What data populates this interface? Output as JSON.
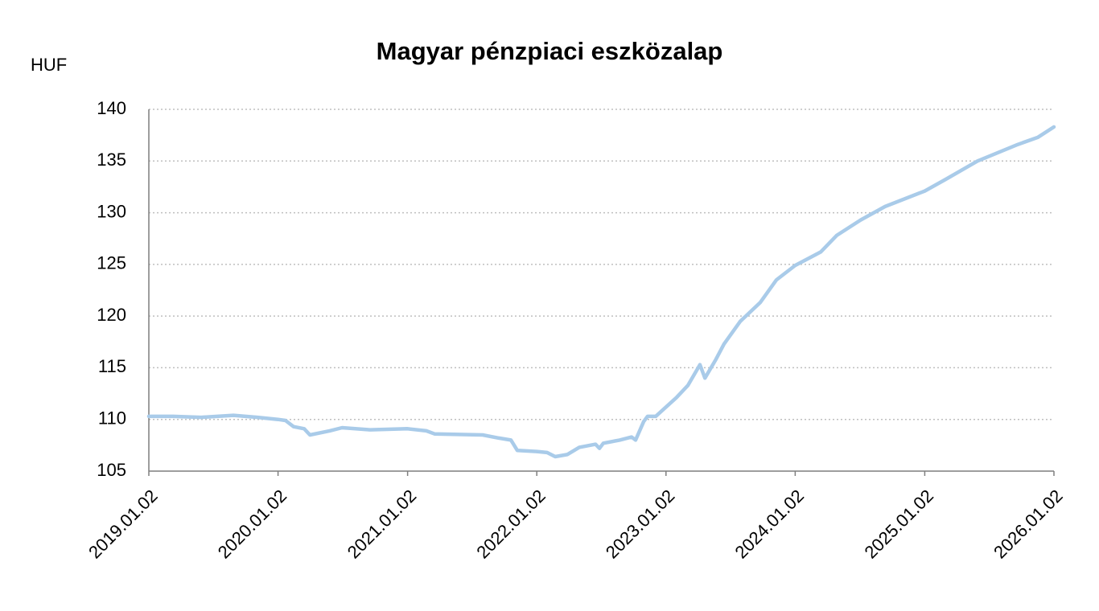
{
  "chart_data": {
    "type": "line",
    "title": "Magyar pénzpiaci eszközalap",
    "y_label": "HUF",
    "x": [
      "2019.01.02",
      "2019.03.11",
      "2019.05.30",
      "2019.08.29",
      "2019.11.05",
      "2020.01.02",
      "2020.01.23",
      "2020.02.15",
      "2020.03.16",
      "2020.04.01",
      "2020.05.27",
      "2020.07.01",
      "2020.09.18",
      "2021.01.02",
      "2021.02.24",
      "2021.03.19",
      "2021.08.02",
      "2021.09.17",
      "2021.10.21",
      "2021.11.08",
      "2022.01.02",
      "2022.01.31",
      "2022.02.23",
      "2022.03.29",
      "2022.05.02",
      "2022.06.17",
      "2022.06.28",
      "2022.07.09",
      "2022.08.24",
      "2022.09.27",
      "2022.10.08",
      "2022.10.31",
      "2022.11.11",
      "2022.12.04",
      "2023.01.02",
      "2023.01.31",
      "2023.03.05",
      "2023.04.08",
      "2023.04.22",
      "2023.05.23",
      "2023.06.15",
      "2023.07.31",
      "2023.09.25",
      "2023.11.10",
      "2024.01.02",
      "2024.03.14",
      "2024.04.28",
      "2024.07.05",
      "2024.09.12",
      "2025.01.02",
      "2025.03.01",
      "2025.05.31",
      "2025.09.22",
      "2025.11.18",
      "2026.01.02"
    ],
    "series": [
      {
        "name": "Magyar pénzpiaci eszközalap",
        "color": "#a9cbe9",
        "values": [
          110.3,
          110.3,
          110.2,
          110.4,
          110.2,
          110.0,
          109.9,
          109.3,
          109.1,
          108.5,
          108.9,
          109.2,
          109.0,
          109.1,
          108.9,
          108.6,
          108.5,
          108.2,
          108.0,
          107.0,
          106.9,
          106.8,
          106.4,
          106.6,
          107.3,
          107.6,
          107.2,
          107.7,
          108.0,
          108.3,
          108.0,
          109.8,
          110.3,
          110.3,
          111.2,
          112.1,
          113.3,
          115.3,
          114.0,
          115.8,
          117.3,
          119.5,
          121.3,
          123.5,
          124.9,
          126.2,
          127.8,
          129.3,
          130.6,
          132.1,
          133.2,
          135.0,
          136.6,
          137.3,
          138.3
        ]
      }
    ],
    "xlim": [
      "2019.01.02",
      "2026.01.02"
    ],
    "xticks": [
      "2019.01.02",
      "2020.01.02",
      "2021.01.02",
      "2022.01.02",
      "2023.01.02",
      "2024.01.02",
      "2025.01.02",
      "2026.01.02"
    ],
    "ylim": [
      105,
      140
    ],
    "yticks": [
      105,
      110,
      115,
      120,
      125,
      130,
      135,
      140
    ],
    "grid": true
  }
}
